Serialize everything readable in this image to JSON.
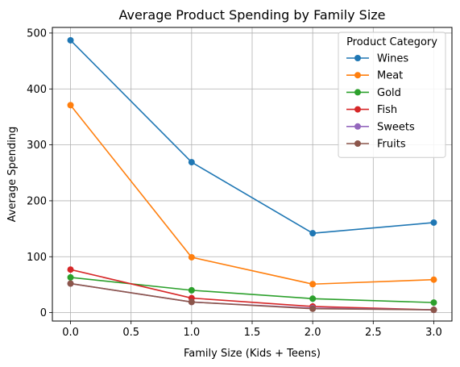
{
  "chart_data": {
    "type": "line",
    "title": "Average Product Spending by Family Size",
    "xlabel": "Family Size (Kids + Teens)",
    "ylabel": "Average Spending",
    "x": [
      0,
      1,
      2,
      3
    ],
    "xlim": [
      -0.15,
      3.15
    ],
    "ylim": [
      -15,
      510
    ],
    "xticks": [
      0.0,
      0.5,
      1.0,
      1.5,
      2.0,
      2.5,
      3.0
    ],
    "xtick_labels": [
      "0.0",
      "0.5",
      "1.0",
      "1.5",
      "2.0",
      "2.5",
      "3.0"
    ],
    "yticks": [
      0,
      100,
      200,
      300,
      400,
      500
    ],
    "ytick_labels": [
      "0",
      "100",
      "200",
      "300",
      "400",
      "500"
    ],
    "grid": true,
    "legend": {
      "title": "Product Category",
      "placement": "top-right"
    },
    "series": [
      {
        "name": "Wines",
        "color": "#1f77b4",
        "values": [
          487,
          269,
          142,
          161
        ]
      },
      {
        "name": "Meat",
        "color": "#ff7f0e",
        "values": [
          371,
          99,
          51,
          59
        ]
      },
      {
        "name": "Gold",
        "color": "#2ca02c",
        "values": [
          63,
          40,
          25,
          18
        ]
      },
      {
        "name": "Fish",
        "color": "#d62728",
        "values": [
          77,
          26,
          11,
          5
        ]
      },
      {
        "name": "Sweets",
        "color": "#9467bd",
        "values": [
          52,
          19,
          8,
          5
        ]
      },
      {
        "name": "Fruits",
        "color": "#8c564b",
        "values": [
          52,
          19,
          7,
          5
        ]
      }
    ]
  }
}
